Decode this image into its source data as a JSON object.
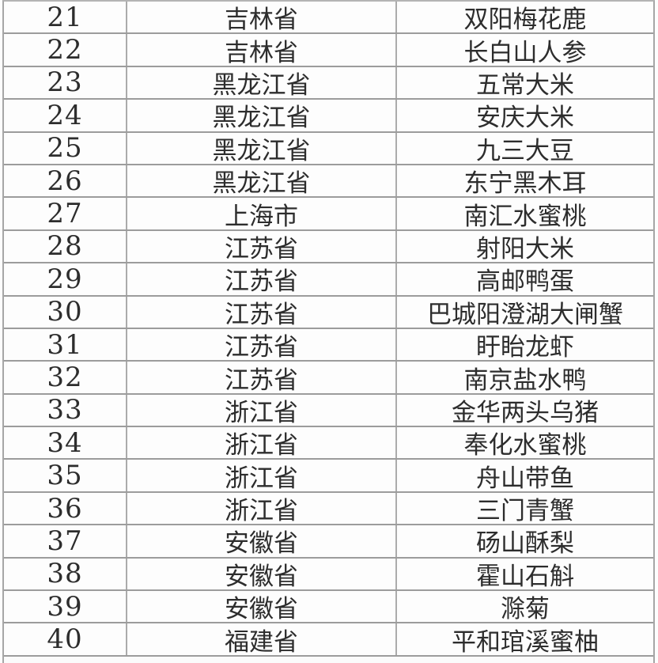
{
  "table": {
    "rows": [
      {
        "index": "21",
        "province": "吉林省",
        "product": "双阳梅花鹿"
      },
      {
        "index": "22",
        "province": "吉林省",
        "product": "长白山人参"
      },
      {
        "index": "23",
        "province": "黑龙江省",
        "product": "五常大米"
      },
      {
        "index": "24",
        "province": "黑龙江省",
        "product": "安庆大米"
      },
      {
        "index": "25",
        "province": "黑龙江省",
        "product": "九三大豆"
      },
      {
        "index": "26",
        "province": "黑龙江省",
        "product": "东宁黑木耳"
      },
      {
        "index": "27",
        "province": "上海市",
        "product": "南汇水蜜桃"
      },
      {
        "index": "28",
        "province": "江苏省",
        "product": "射阳大米"
      },
      {
        "index": "29",
        "province": "江苏省",
        "product": "高邮鸭蛋"
      },
      {
        "index": "30",
        "province": "江苏省",
        "product": "巴城阳澄湖大闸蟹"
      },
      {
        "index": "31",
        "province": "江苏省",
        "product": "盱眙龙虾"
      },
      {
        "index": "32",
        "province": "江苏省",
        "product": "南京盐水鸭"
      },
      {
        "index": "33",
        "province": "浙江省",
        "product": "金华两头乌猪"
      },
      {
        "index": "34",
        "province": "浙江省",
        "product": "奉化水蜜桃"
      },
      {
        "index": "35",
        "province": "浙江省",
        "product": "舟山带鱼"
      },
      {
        "index": "36",
        "province": "浙江省",
        "product": "三门青蟹"
      },
      {
        "index": "37",
        "province": "安徽省",
        "product": "砀山酥梨"
      },
      {
        "index": "38",
        "province": "安徽省",
        "product": "霍山石斛"
      },
      {
        "index": "39",
        "province": "安徽省",
        "product": "滁菊"
      },
      {
        "index": "40",
        "province": "福建省",
        "product": "平和琯溪蜜柚"
      }
    ]
  },
  "colors": {
    "grid": "#9c9c9c",
    "text": "#2d2d2d",
    "background": "#fdfdfd"
  }
}
